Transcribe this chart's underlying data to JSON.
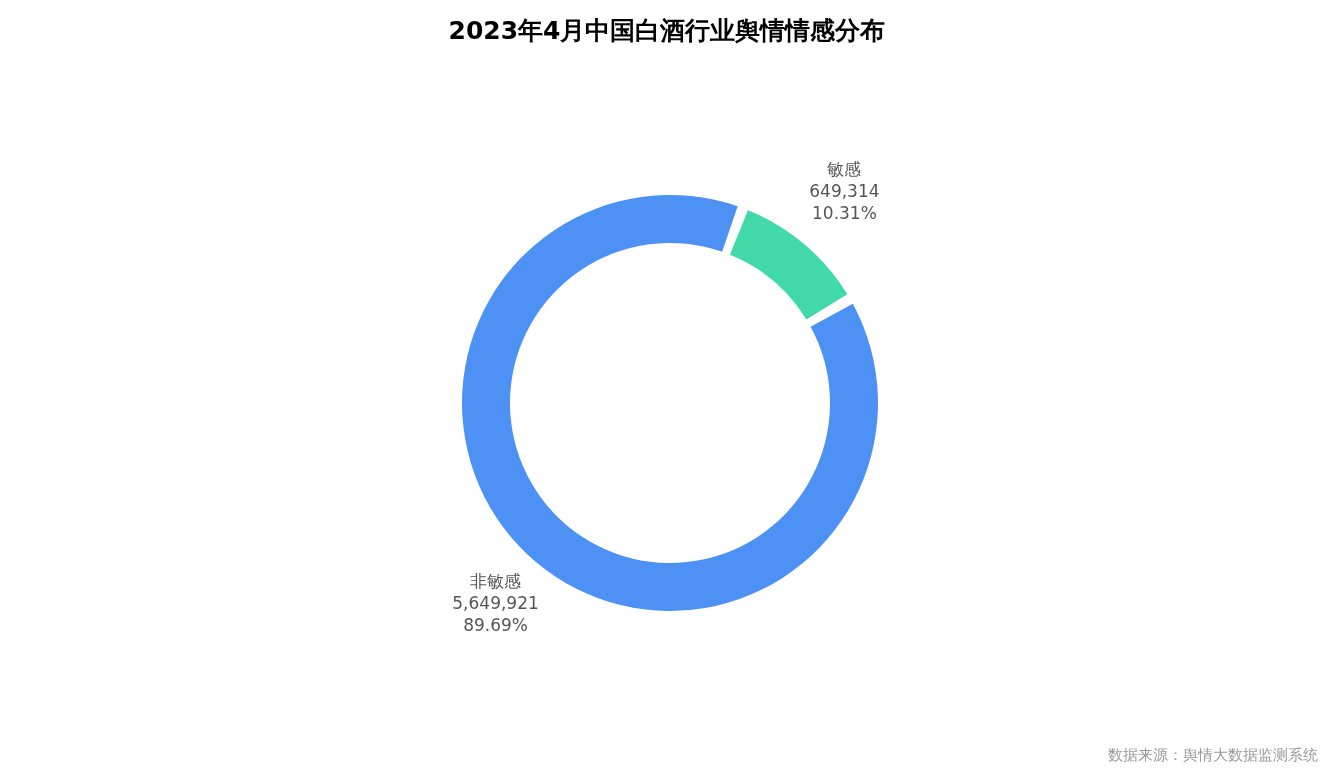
{
  "chart_data": {
    "type": "donut",
    "title": "2023年4月中国白酒行业舆情情感分布",
    "categories": [
      "敏感",
      "非敏感"
    ],
    "values": [
      649314,
      5649921
    ],
    "colors": [
      "#41d9a8",
      "#4e91f5"
    ],
    "value_labels": [
      "649,314\n10.31%",
      "5,649,921\n89.69%"
    ],
    "legend": false,
    "annotations": [
      "数据来源：舆情大数据监测系统"
    ]
  }
}
